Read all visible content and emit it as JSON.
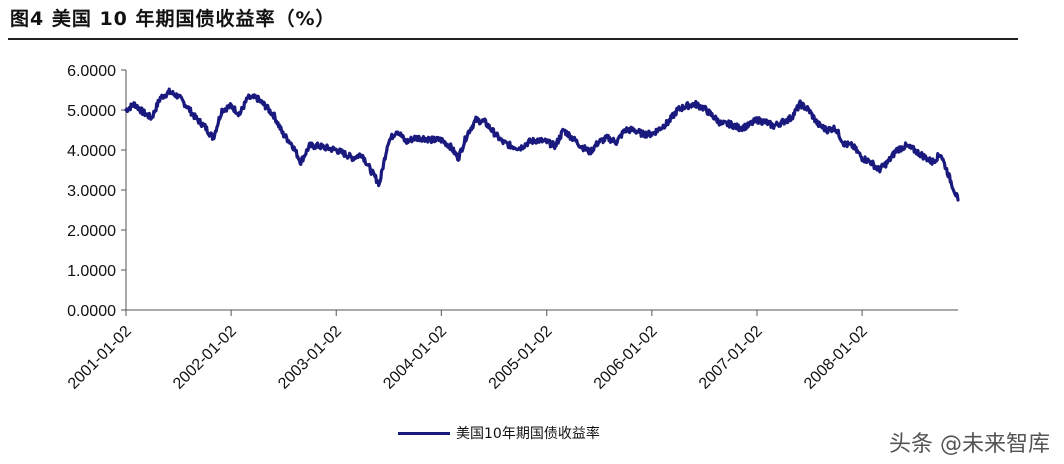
{
  "figure": {
    "title": "图4  美国 10 年期国债收益率（%）"
  },
  "watermark": "头条 @未来智库",
  "chart_data": {
    "type": "line",
    "ylim": [
      0,
      6
    ],
    "y_ticks": [
      "0.0000",
      "1.0000",
      "2.0000",
      "3.0000",
      "4.0000",
      "5.0000",
      "6.0000"
    ],
    "x_ticks": [
      "2001-01-02",
      "2002-01-02",
      "2003-01-02",
      "2004-01-02",
      "2005-01-02",
      "2006-01-02",
      "2007-01-02",
      "2008-01-02"
    ],
    "xlim": [
      "2001-01-02",
      "2008-11-30"
    ],
    "grid": false,
    "legend_position": "bottom",
    "line_color": "#1a1a7e",
    "series": [
      {
        "name": "美国10年期国债收益率",
        "points": [
          [
            "2001-01-02",
            5.0
          ],
          [
            "2001-02-01",
            5.15
          ],
          [
            "2001-03-01",
            4.95
          ],
          [
            "2001-04-01",
            4.8
          ],
          [
            "2001-05-01",
            5.3
          ],
          [
            "2001-06-01",
            5.45
          ],
          [
            "2001-07-01",
            5.35
          ],
          [
            "2001-08-01",
            5.1
          ],
          [
            "2001-09-01",
            4.8
          ],
          [
            "2001-10-01",
            4.6
          ],
          [
            "2001-11-01",
            4.3
          ],
          [
            "2001-12-01",
            5.0
          ],
          [
            "2002-01-02",
            5.1
          ],
          [
            "2002-02-01",
            4.9
          ],
          [
            "2002-03-01",
            5.3
          ],
          [
            "2002-04-01",
            5.3
          ],
          [
            "2002-05-01",
            5.1
          ],
          [
            "2002-06-01",
            4.85
          ],
          [
            "2002-07-01",
            4.4
          ],
          [
            "2002-08-01",
            4.15
          ],
          [
            "2002-09-01",
            3.7
          ],
          [
            "2002-10-01",
            4.1
          ],
          [
            "2002-11-01",
            4.1
          ],
          [
            "2002-12-01",
            4.05
          ],
          [
            "2003-01-02",
            4.0
          ],
          [
            "2003-02-01",
            3.9
          ],
          [
            "2003-03-01",
            3.8
          ],
          [
            "2003-04-01",
            3.9
          ],
          [
            "2003-05-01",
            3.5
          ],
          [
            "2003-06-01",
            3.15
          ],
          [
            "2003-07-01",
            4.2
          ],
          [
            "2003-08-01",
            4.5
          ],
          [
            "2003-09-01",
            4.2
          ],
          [
            "2003-10-01",
            4.3
          ],
          [
            "2003-11-01",
            4.3
          ],
          [
            "2003-12-01",
            4.25
          ],
          [
            "2004-01-02",
            4.25
          ],
          [
            "2004-02-01",
            4.1
          ],
          [
            "2004-03-01",
            3.8
          ],
          [
            "2004-04-01",
            4.4
          ],
          [
            "2004-05-01",
            4.75
          ],
          [
            "2004-06-01",
            4.7
          ],
          [
            "2004-07-01",
            4.45
          ],
          [
            "2004-08-01",
            4.2
          ],
          [
            "2004-09-01",
            4.1
          ],
          [
            "2004-10-01",
            4.05
          ],
          [
            "2004-11-01",
            4.2
          ],
          [
            "2004-12-01",
            4.25
          ],
          [
            "2005-01-02",
            4.2
          ],
          [
            "2005-02-01",
            4.1
          ],
          [
            "2005-03-01",
            4.5
          ],
          [
            "2005-04-01",
            4.3
          ],
          [
            "2005-05-01",
            4.1
          ],
          [
            "2005-06-01",
            3.95
          ],
          [
            "2005-07-01",
            4.2
          ],
          [
            "2005-08-01",
            4.3
          ],
          [
            "2005-09-01",
            4.2
          ],
          [
            "2005-10-01",
            4.5
          ],
          [
            "2005-11-01",
            4.5
          ],
          [
            "2005-12-01",
            4.4
          ],
          [
            "2006-01-02",
            4.4
          ],
          [
            "2006-02-01",
            4.55
          ],
          [
            "2006-03-01",
            4.7
          ],
          [
            "2006-04-01",
            5.0
          ],
          [
            "2006-05-01",
            5.1
          ],
          [
            "2006-06-01",
            5.15
          ],
          [
            "2006-07-01",
            5.05
          ],
          [
            "2006-08-01",
            4.85
          ],
          [
            "2006-09-01",
            4.65
          ],
          [
            "2006-10-01",
            4.65
          ],
          [
            "2006-11-01",
            4.55
          ],
          [
            "2006-12-01",
            4.6
          ],
          [
            "2007-01-02",
            4.75
          ],
          [
            "2007-02-01",
            4.7
          ],
          [
            "2007-03-01",
            4.6
          ],
          [
            "2007-04-01",
            4.7
          ],
          [
            "2007-05-01",
            4.8
          ],
          [
            "2007-06-01",
            5.15
          ],
          [
            "2007-07-01",
            5.0
          ],
          [
            "2007-08-01",
            4.65
          ],
          [
            "2007-09-01",
            4.5
          ],
          [
            "2007-10-01",
            4.55
          ],
          [
            "2007-11-01",
            4.15
          ],
          [
            "2007-12-01",
            4.1
          ],
          [
            "2008-01-02",
            3.8
          ],
          [
            "2008-02-01",
            3.7
          ],
          [
            "2008-03-01",
            3.5
          ],
          [
            "2008-04-01",
            3.7
          ],
          [
            "2008-05-01",
            4.0
          ],
          [
            "2008-06-01",
            4.1
          ],
          [
            "2008-07-01",
            4.0
          ],
          [
            "2008-08-01",
            3.85
          ],
          [
            "2008-09-01",
            3.7
          ],
          [
            "2008-10-01",
            3.9
          ],
          [
            "2008-11-01",
            3.3
          ],
          [
            "2008-11-30",
            2.75
          ]
        ]
      }
    ]
  }
}
